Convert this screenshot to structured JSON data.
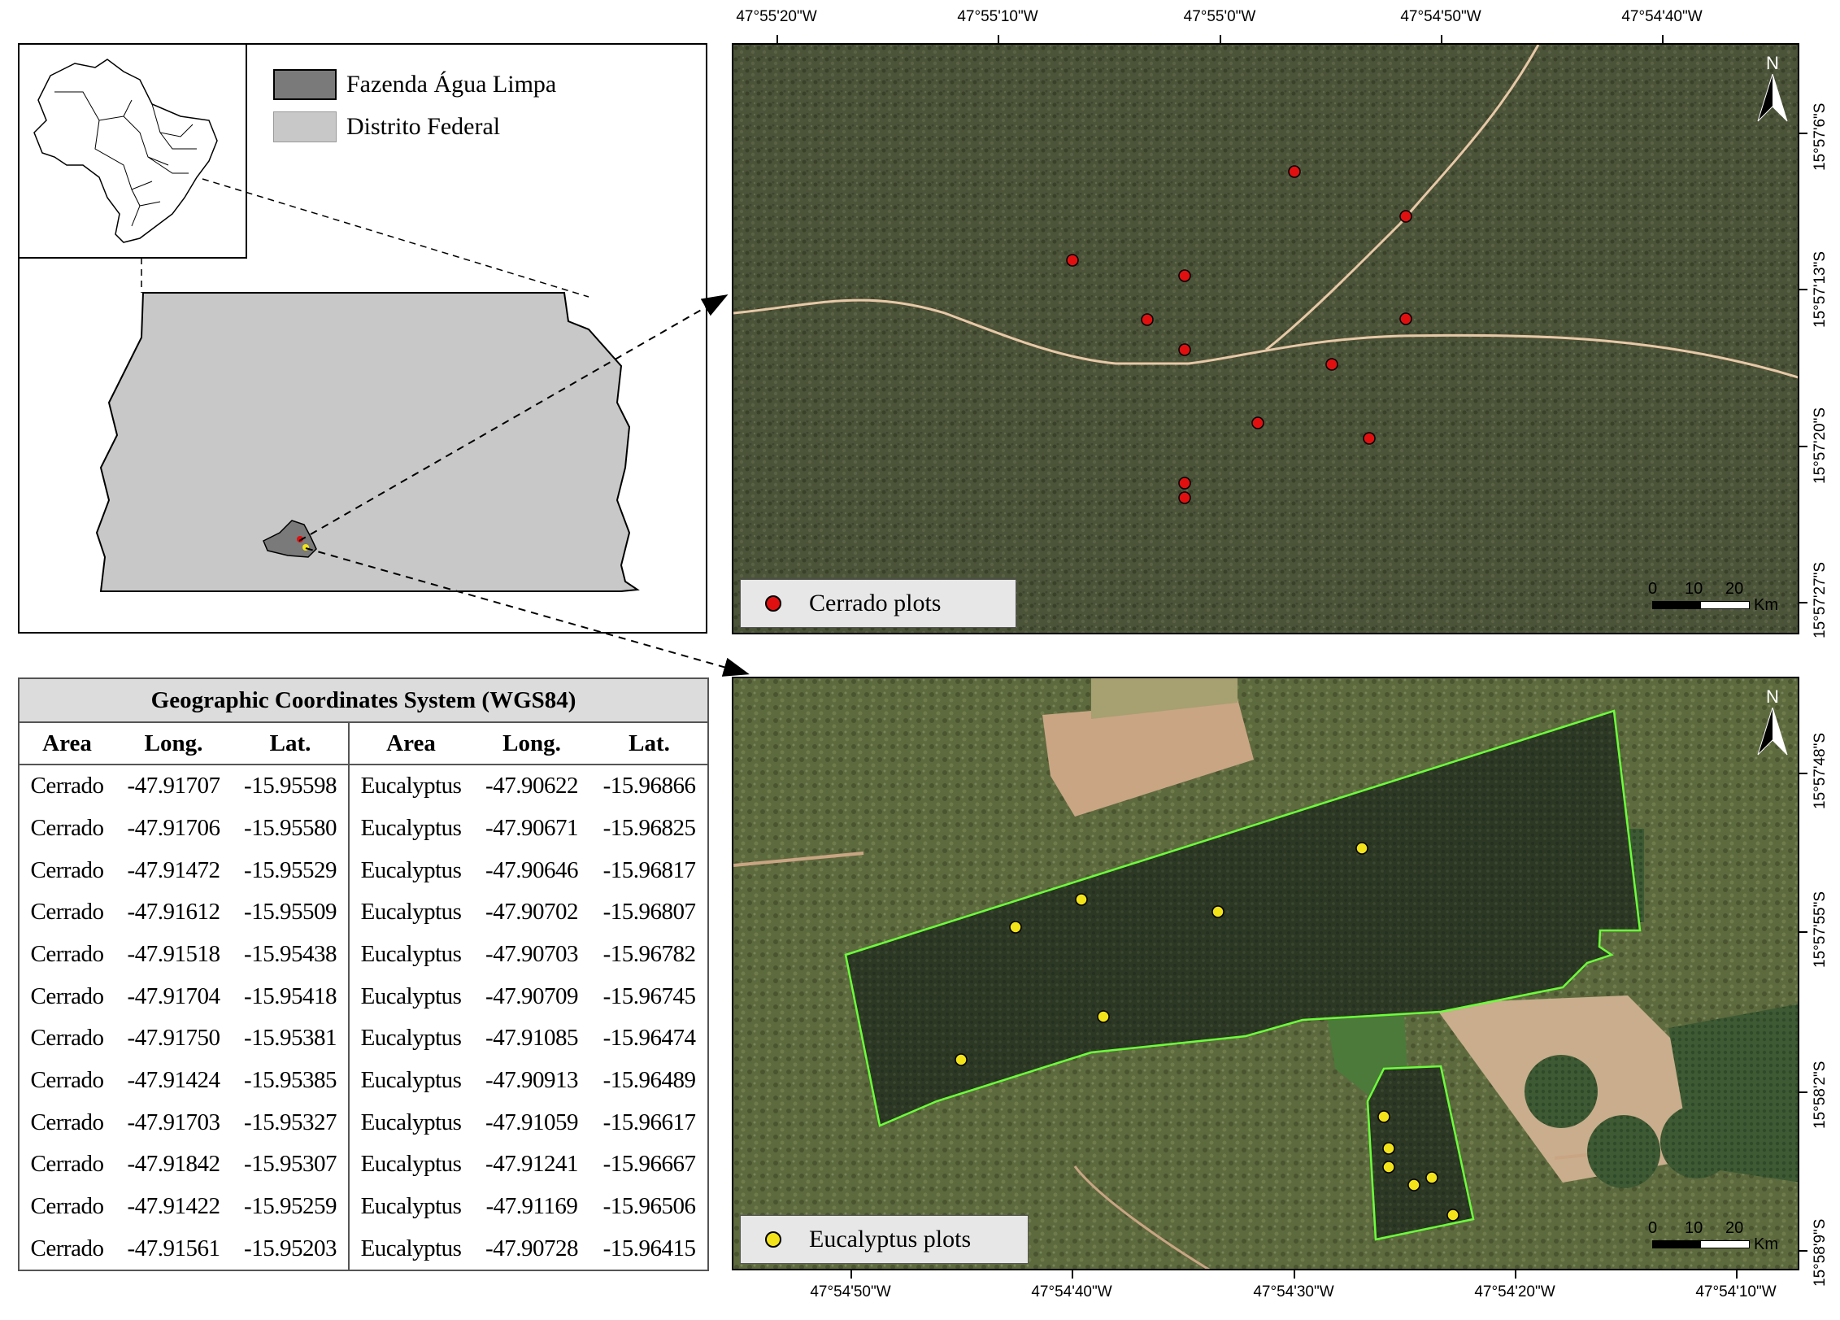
{
  "legend_regions": {
    "items": [
      {
        "label": "Fazenda Água Limpa",
        "color": "#7a7a7a"
      },
      {
        "label": "Distrito Federal",
        "color": "#c8c8c8"
      }
    ]
  },
  "top_map": {
    "x_ticks": [
      "47°55'20\"W",
      "47°55'10\"W",
      "47°55'0\"W",
      "47°54'50\"W",
      "47°54'40\"W"
    ],
    "y_ticks": [
      "15°57'6\"S",
      "15°57'13\"S",
      "15°57'20\"S",
      "15°57'27\"S"
    ],
    "legend_label": "Cerrado plots",
    "plot_color": "#e01010",
    "north_label": "N",
    "scale": {
      "labels": [
        "0",
        "10",
        "20"
      ],
      "unit": "Km"
    }
  },
  "bottom_map": {
    "x_ticks": [
      "47°54'50\"W",
      "47°54'40\"W",
      "47°54'30\"W",
      "47°54'20\"W",
      "47°54'10\"W"
    ],
    "y_ticks": [
      "15°57'48\"S",
      "15°57'55\"S",
      "15°58'2\"S",
      "15°58'9\"S"
    ],
    "legend_label": "Eucalyptus plots",
    "plot_color": "#f2e31a",
    "boundary_color": "#6cff3a",
    "north_label": "N",
    "scale": {
      "labels": [
        "0",
        "10",
        "20"
      ],
      "unit": "Km"
    }
  },
  "table": {
    "title": "Geographic Coordinates System (WGS84)",
    "headers": [
      "Area",
      "Long.",
      "Lat.",
      "Area",
      "Long.",
      "Lat."
    ],
    "rows": [
      [
        "Cerrado",
        "-47.91707",
        "-15.95598",
        "Eucalyptus",
        "-47.90622",
        "-15.96866"
      ],
      [
        "Cerrado",
        "-47.91706",
        "-15.95580",
        "Eucalyptus",
        "-47.90671",
        "-15.96825"
      ],
      [
        "Cerrado",
        "-47.91472",
        "-15.95529",
        "Eucalyptus",
        "-47.90646",
        "-15.96817"
      ],
      [
        "Cerrado",
        "-47.91612",
        "-15.95509",
        "Eucalyptus",
        "-47.90702",
        "-15.96807"
      ],
      [
        "Cerrado",
        "-47.91518",
        "-15.95438",
        "Eucalyptus",
        "-47.90703",
        "-15.96782"
      ],
      [
        "Cerrado",
        "-47.91704",
        "-15.95418",
        "Eucalyptus",
        "-47.90709",
        "-15.96745"
      ],
      [
        "Cerrado",
        "-47.91750",
        "-15.95381",
        "Eucalyptus",
        "-47.91085",
        "-15.96474"
      ],
      [
        "Cerrado",
        "-47.91424",
        "-15.95385",
        "Eucalyptus",
        "-47.90913",
        "-15.96489"
      ],
      [
        "Cerrado",
        "-47.91703",
        "-15.95327",
        "Eucalyptus",
        "-47.91059",
        "-15.96617"
      ],
      [
        "Cerrado",
        "-47.91842",
        "-15.95307",
        "Eucalyptus",
        "-47.91241",
        "-15.96667"
      ],
      [
        "Cerrado",
        "-47.91422",
        "-15.95259",
        "Eucalyptus",
        "-47.91169",
        "-15.96506"
      ],
      [
        "Cerrado",
        "-47.91561",
        "-15.95203",
        "Eucalyptus",
        "-47.90728",
        "-15.96415"
      ]
    ]
  }
}
